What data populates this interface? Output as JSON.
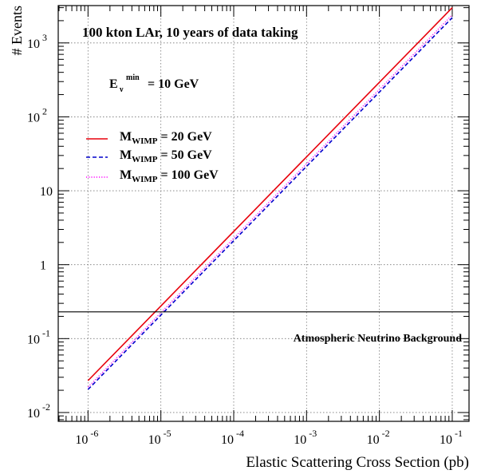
{
  "chart_data": {
    "type": "line",
    "xscale": "log",
    "yscale": "log",
    "xlim": [
      3.9e-07,
      0.17
    ],
    "ylim": [
      0.0076,
      3200
    ],
    "grid": true,
    "legend_position": "left, below the threshold note",
    "title": "100 kton LAr, 10 years of data taking",
    "threshold": {
      "label": "E",
      "sub": "ν",
      "sup": "min",
      "value_text": "= 10 GeV"
    },
    "xlabel": "Elastic Scattering Cross Section (pb)",
    "ylabel": "# Events",
    "x_ticks": [
      {
        "value": 1e-06,
        "base": "10",
        "exp": "-6"
      },
      {
        "value": 1e-05,
        "base": "10",
        "exp": "-5"
      },
      {
        "value": 0.0001,
        "base": "10",
        "exp": "-4"
      },
      {
        "value": 0.001,
        "base": "10",
        "exp": "-3"
      },
      {
        "value": 0.01,
        "base": "10",
        "exp": "-2"
      },
      {
        "value": 0.1,
        "base": "10",
        "exp": "-1"
      }
    ],
    "y_ticks": [
      {
        "value": 0.01,
        "base": "10",
        "exp": "-2"
      },
      {
        "value": 0.1,
        "base": "10",
        "exp": "-1"
      },
      {
        "value": 1,
        "base": "1",
        "exp": ""
      },
      {
        "value": 10,
        "base": "10",
        "exp": ""
      },
      {
        "value": 100,
        "base": "10",
        "exp": "2"
      },
      {
        "value": 1000,
        "base": "10",
        "exp": "3"
      }
    ],
    "background": {
      "label": "Atmospheric Neutrino Background",
      "value": 0.23,
      "color": "#000000"
    },
    "series": [
      {
        "name": "20 GeV",
        "label": "M",
        "sub": "WIMP",
        "value_text": "= 20 GeV",
        "color": "#e8000b",
        "dash": "solid",
        "x": [
          1e-06,
          0.1
        ],
        "y": [
          0.027,
          3000
        ]
      },
      {
        "name": "50 GeV",
        "label": "M",
        "sub": "WIMP",
        "value_text": "= 50 GeV",
        "color": "#0000cc",
        "dash": "dashed",
        "x": [
          1e-06,
          0.1
        ],
        "y": [
          0.0205,
          2200
        ]
      },
      {
        "name": "100 GeV",
        "label": "M",
        "sub": "WIMP",
        "value_text": "= 100 GeV",
        "color": "#ff00ff",
        "dash": "dotted",
        "x": [
          1e-06,
          0.1
        ],
        "y": [
          0.022,
          2400
        ]
      }
    ]
  }
}
